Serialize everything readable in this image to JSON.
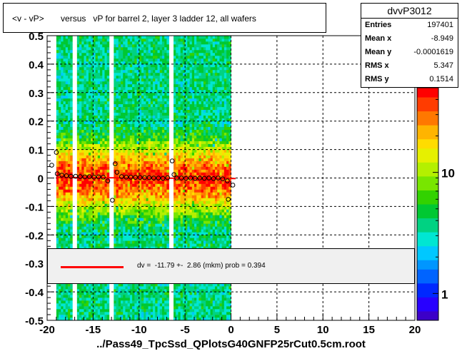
{
  "title": "<v - vP>       versus   vP for barrel 2, layer 3 ladder 12, all wafers",
  "stats": {
    "name": "dvvP3012",
    "rows": [
      {
        "label": "Entries",
        "value": "197401"
      },
      {
        "label": "Mean x",
        "value": "-8.949"
      },
      {
        "label": "Mean y",
        "value": "-0.0001619"
      },
      {
        "label": "RMS x",
        "value": "5.347"
      },
      {
        "label": "RMS y",
        "value": "0.1514"
      }
    ]
  },
  "legend": {
    "text": "dv =  -11.79 +-  2.86 (mkm) prob = 0.394",
    "line_color": "#ff0000"
  },
  "x_axis_title": "../Pass49_TpcSsd_QPlotsG40GNFP25rCut0.5cm.root",
  "colors": {
    "fit_line": "#ff0000",
    "markers": "#000000"
  },
  "chart_data": {
    "type": "heatmap",
    "xlim": [
      -20,
      20
    ],
    "ylim": [
      -0.5,
      0.5
    ],
    "x_ticks": [
      -20,
      -15,
      -10,
      -5,
      0,
      5,
      10,
      15,
      20
    ],
    "x_tick_labels": [
      "-20",
      "-15",
      "-10",
      "-5",
      "0",
      "5",
      "10",
      "15",
      "20"
    ],
    "y_ticks": [
      -0.5,
      -0.4,
      -0.3,
      -0.2,
      -0.1,
      0,
      0.1,
      0.2,
      0.3,
      0.4,
      0.5
    ],
    "y_tick_labels": [
      "-0.5",
      "-0.4",
      "-0.3",
      "-0.2",
      "-0.1",
      "0",
      "0.1",
      "0.2",
      "0.3",
      "0.4",
      "0.5"
    ],
    "grid": true,
    "occupied_x_range": [
      -19,
      0
    ],
    "gap_columns_x": [
      -17,
      -13,
      -6.5
    ],
    "colorbar_ticks": [
      1,
      10
    ],
    "colorbar_tick_labels": [
      "1",
      "10"
    ],
    "colorbar_range": [
      0.6,
      50
    ],
    "profile_points": [
      {
        "x": -19.5,
        "y": 0.045
      },
      {
        "x": -19,
        "y": 0.09
      },
      {
        "x": -18.9,
        "y": 0.015
      },
      {
        "x": -18.4,
        "y": 0.01
      },
      {
        "x": -17.9,
        "y": 0.008
      },
      {
        "x": -17.4,
        "y": 0.006
      },
      {
        "x": -16.9,
        "y": 0.006
      },
      {
        "x": -16.4,
        "y": 0.005
      },
      {
        "x": -15.9,
        "y": 0.004
      },
      {
        "x": -15.4,
        "y": 0.005
      },
      {
        "x": -14.9,
        "y": 0.003
      },
      {
        "x": -14.4,
        "y": 0.004
      },
      {
        "x": -13.9,
        "y": 0.003
      },
      {
        "x": -13.4,
        "y": -0.01
      },
      {
        "x": -12.9,
        "y": -0.078
      },
      {
        "x": -12.6,
        "y": 0.05
      },
      {
        "x": -12.4,
        "y": 0.02
      },
      {
        "x": -11.9,
        "y": 0.005
      },
      {
        "x": -11.4,
        "y": 0.003
      },
      {
        "x": -10.9,
        "y": 0.003
      },
      {
        "x": -10.4,
        "y": 0.002
      },
      {
        "x": -9.9,
        "y": 0.002
      },
      {
        "x": -9.4,
        "y": 0.001
      },
      {
        "x": -8.9,
        "y": 0.001
      },
      {
        "x": -8.4,
        "y": 0.0
      },
      {
        "x": -7.9,
        "y": 0.0
      },
      {
        "x": -7.4,
        "y": -0.001
      },
      {
        "x": -6.9,
        "y": 0.001
      },
      {
        "x": -6.4,
        "y": 0.06
      },
      {
        "x": -6.2,
        "y": 0.012
      },
      {
        "x": -5.9,
        "y": 0.0
      },
      {
        "x": -5.4,
        "y": 0.0
      },
      {
        "x": -4.9,
        "y": -0.001
      },
      {
        "x": -4.4,
        "y": 0.0
      },
      {
        "x": -3.9,
        "y": -0.001
      },
      {
        "x": -3.4,
        "y": 0.0
      },
      {
        "x": -2.9,
        "y": -0.001
      },
      {
        "x": -2.4,
        "y": 0.0
      },
      {
        "x": -1.9,
        "y": -0.002
      },
      {
        "x": -1.4,
        "y": 0.0
      },
      {
        "x": -0.9,
        "y": -0.003
      },
      {
        "x": -0.4,
        "y": -0.01
      },
      {
        "x": -0.3,
        "y": -0.075
      },
      {
        "x": 0.2,
        "y": -0.025
      }
    ],
    "fit_line": {
      "x": [
        -19,
        0.5
      ],
      "y": [
        0.002,
        -0.002
      ]
    }
  }
}
